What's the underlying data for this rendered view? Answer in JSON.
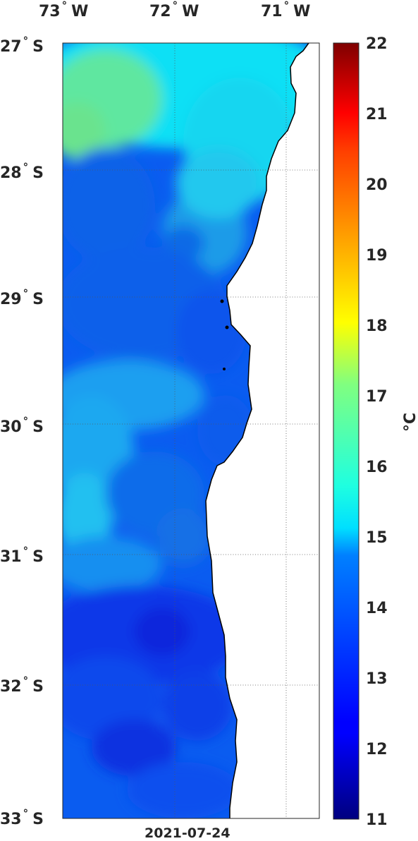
{
  "map": {
    "date": "2021-07-24",
    "lon_labels": [
      {
        "deg": "73",
        "hemi": "W"
      },
      {
        "deg": "72",
        "hemi": "W"
      },
      {
        "deg": "71",
        "hemi": "W"
      }
    ],
    "lat_labels": [
      {
        "deg": "27",
        "hemi": "S"
      },
      {
        "deg": "28",
        "hemi": "S"
      },
      {
        "deg": "29",
        "hemi": "S"
      },
      {
        "deg": "30",
        "hemi": "S"
      },
      {
        "deg": "31",
        "hemi": "S"
      },
      {
        "deg": "32",
        "hemi": "S"
      },
      {
        "deg": "33",
        "hemi": "S"
      }
    ],
    "lon_range": [
      -73,
      -70.8
    ],
    "lat_range": [
      -33,
      -27
    ],
    "land_color": "#ffffff",
    "colormap": "jet"
  },
  "colorbar": {
    "unit": "°C",
    "min": 11,
    "max": 22,
    "ticks": [
      "22",
      "21",
      "20",
      "19",
      "18",
      "17",
      "16",
      "15",
      "14",
      "13",
      "12",
      "11"
    ]
  }
}
